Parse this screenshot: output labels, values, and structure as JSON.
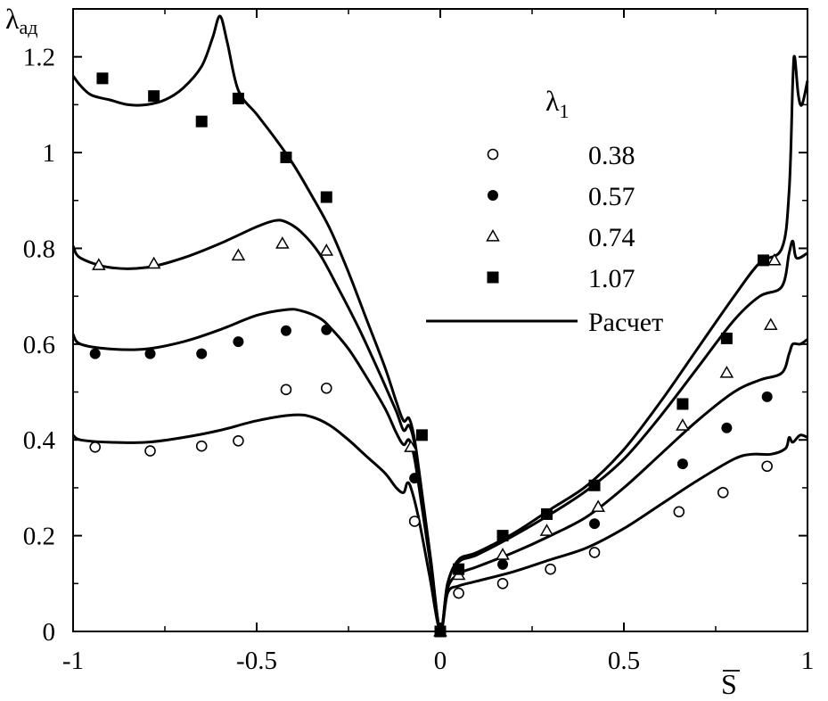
{
  "chart_data": {
    "type": "scatter",
    "xlim": [
      -1,
      1
    ],
    "ylim": [
      0,
      1.3
    ],
    "xlabel": "S",
    "ylabel_main": "λ",
    "ylabel_sub": "ад",
    "xticks": [
      -1,
      -0.5,
      0,
      0.5,
      1
    ],
    "xtick_labels": [
      "-1",
      "-0.5",
      "0",
      "0.5",
      "1"
    ],
    "yticks": [
      0,
      0.2,
      0.4,
      0.6,
      0.8,
      1,
      1.2
    ],
    "ytick_labels": [
      "0",
      "0.2",
      "0.4",
      "0.6",
      "0.8",
      "1",
      "1.2"
    ],
    "grid": false,
    "legend_position": "top-right",
    "legend_title_main": "λ",
    "legend_title_sub": "1",
    "series": [
      {
        "name": "0.38",
        "marker": "open-circle",
        "points": [
          [
            -0.94,
            0.385
          ],
          [
            -0.79,
            0.377
          ],
          [
            -0.65,
            0.387
          ],
          [
            -0.55,
            0.398
          ],
          [
            -0.42,
            0.505
          ],
          [
            -0.31,
            0.508
          ],
          [
            -0.07,
            0.23
          ],
          [
            0.0,
            0.0
          ],
          [
            0.05,
            0.08
          ],
          [
            0.17,
            0.1
          ],
          [
            0.3,
            0.13
          ],
          [
            0.42,
            0.165
          ],
          [
            0.65,
            0.25
          ],
          [
            0.77,
            0.29
          ],
          [
            0.89,
            0.345
          ]
        ]
      },
      {
        "name": "0.57",
        "marker": "filled-circle",
        "points": [
          [
            -0.94,
            0.58
          ],
          [
            -0.79,
            0.58
          ],
          [
            -0.65,
            0.58
          ],
          [
            -0.55,
            0.605
          ],
          [
            -0.42,
            0.628
          ],
          [
            -0.31,
            0.63
          ],
          [
            -0.07,
            0.32
          ],
          [
            0.0,
            0.0
          ],
          [
            0.05,
            0.125
          ],
          [
            0.17,
            0.14
          ],
          [
            0.42,
            0.225
          ],
          [
            0.66,
            0.35
          ],
          [
            0.78,
            0.425
          ],
          [
            0.89,
            0.49
          ]
        ]
      },
      {
        "name": "0.74",
        "marker": "open-triangle",
        "points": [
          [
            -0.93,
            0.765
          ],
          [
            -0.78,
            0.768
          ],
          [
            -0.55,
            0.785
          ],
          [
            -0.43,
            0.81
          ],
          [
            -0.31,
            0.795
          ],
          [
            -0.08,
            0.385
          ],
          [
            0.0,
            0.0
          ],
          [
            0.05,
            0.118
          ],
          [
            0.17,
            0.16
          ],
          [
            0.29,
            0.21
          ],
          [
            0.43,
            0.26
          ],
          [
            0.66,
            0.43
          ],
          [
            0.78,
            0.54
          ],
          [
            0.9,
            0.64
          ],
          [
            0.91,
            0.775
          ]
        ]
      },
      {
        "name": "1.07",
        "marker": "filled-square",
        "points": [
          [
            -0.92,
            1.155
          ],
          [
            -0.78,
            1.118
          ],
          [
            -0.65,
            1.065
          ],
          [
            -0.55,
            1.113
          ],
          [
            -0.42,
            0.99
          ],
          [
            -0.31,
            0.907
          ],
          [
            -0.05,
            0.41
          ],
          [
            0.0,
            0.0
          ],
          [
            0.05,
            0.13
          ],
          [
            0.17,
            0.2
          ],
          [
            0.29,
            0.245
          ],
          [
            0.42,
            0.305
          ],
          [
            0.66,
            0.475
          ],
          [
            0.78,
            0.612
          ],
          [
            0.88,
            0.775
          ]
        ]
      }
    ],
    "calculation": {
      "name": "Расчет",
      "curves": [
        [
          [
            -1,
            0.41
          ],
          [
            -0.98,
            0.4
          ],
          [
            -0.9,
            0.395
          ],
          [
            -0.8,
            0.395
          ],
          [
            -0.7,
            0.405
          ],
          [
            -0.6,
            0.42
          ],
          [
            -0.5,
            0.44
          ],
          [
            -0.4,
            0.452
          ],
          [
            -0.35,
            0.448
          ],
          [
            -0.3,
            0.43
          ],
          [
            -0.25,
            0.4
          ],
          [
            -0.2,
            0.365
          ],
          [
            -0.15,
            0.33
          ],
          [
            -0.12,
            0.3
          ],
          [
            -0.1,
            0.29
          ],
          [
            -0.09,
            0.31
          ],
          [
            -0.08,
            0.3
          ],
          [
            -0.06,
            0.24
          ],
          [
            -0.03,
            0.12
          ],
          [
            0,
            0
          ],
          [
            0.02,
            0.08
          ],
          [
            0.05,
            0.095
          ],
          [
            0.1,
            0.105
          ],
          [
            0.2,
            0.125
          ],
          [
            0.3,
            0.15
          ],
          [
            0.4,
            0.175
          ],
          [
            0.5,
            0.215
          ],
          [
            0.6,
            0.265
          ],
          [
            0.7,
            0.315
          ],
          [
            0.8,
            0.36
          ],
          [
            0.85,
            0.37
          ],
          [
            0.9,
            0.37
          ],
          [
            0.94,
            0.382
          ],
          [
            0.95,
            0.405
          ],
          [
            0.96,
            0.395
          ],
          [
            0.98,
            0.41
          ],
          [
            1,
            0.405
          ]
        ],
        [
          [
            -1,
            0.62
          ],
          [
            -0.98,
            0.6
          ],
          [
            -0.9,
            0.59
          ],
          [
            -0.8,
            0.59
          ],
          [
            -0.7,
            0.605
          ],
          [
            -0.6,
            0.63
          ],
          [
            -0.5,
            0.66
          ],
          [
            -0.42,
            0.672
          ],
          [
            -0.38,
            0.67
          ],
          [
            -0.33,
            0.655
          ],
          [
            -0.3,
            0.635
          ],
          [
            -0.25,
            0.59
          ],
          [
            -0.2,
            0.53
          ],
          [
            -0.15,
            0.465
          ],
          [
            -0.12,
            0.415
          ],
          [
            -0.1,
            0.39
          ],
          [
            -0.085,
            0.4
          ],
          [
            -0.07,
            0.36
          ],
          [
            -0.05,
            0.26
          ],
          [
            -0.025,
            0.13
          ],
          [
            0,
            0
          ],
          [
            0.02,
            0.09
          ],
          [
            0.05,
            0.12
          ],
          [
            0.1,
            0.135
          ],
          [
            0.2,
            0.165
          ],
          [
            0.3,
            0.2
          ],
          [
            0.4,
            0.24
          ],
          [
            0.5,
            0.3
          ],
          [
            0.6,
            0.37
          ],
          [
            0.7,
            0.44
          ],
          [
            0.8,
            0.5
          ],
          [
            0.87,
            0.525
          ],
          [
            0.93,
            0.54
          ],
          [
            0.95,
            0.58
          ],
          [
            0.96,
            0.6
          ],
          [
            0.98,
            0.6
          ],
          [
            1,
            0.61
          ]
        ],
        [
          [
            -1,
            0.805
          ],
          [
            -0.98,
            0.78
          ],
          [
            -0.9,
            0.76
          ],
          [
            -0.8,
            0.76
          ],
          [
            -0.7,
            0.78
          ],
          [
            -0.6,
            0.81
          ],
          [
            -0.5,
            0.845
          ],
          [
            -0.45,
            0.858
          ],
          [
            -0.42,
            0.855
          ],
          [
            -0.38,
            0.835
          ],
          [
            -0.33,
            0.79
          ],
          [
            -0.28,
            0.72
          ],
          [
            -0.22,
            0.63
          ],
          [
            -0.16,
            0.53
          ],
          [
            -0.12,
            0.46
          ],
          [
            -0.1,
            0.42
          ],
          [
            -0.085,
            0.43
          ],
          [
            -0.07,
            0.39
          ],
          [
            -0.05,
            0.28
          ],
          [
            -0.025,
            0.14
          ],
          [
            0,
            0
          ],
          [
            0.02,
            0.1
          ],
          [
            0.05,
            0.145
          ],
          [
            0.1,
            0.16
          ],
          [
            0.2,
            0.2
          ],
          [
            0.3,
            0.245
          ],
          [
            0.4,
            0.295
          ],
          [
            0.5,
            0.36
          ],
          [
            0.6,
            0.45
          ],
          [
            0.7,
            0.55
          ],
          [
            0.8,
            0.65
          ],
          [
            0.87,
            0.7
          ],
          [
            0.93,
            0.72
          ],
          [
            0.95,
            0.79
          ],
          [
            0.96,
            0.815
          ],
          [
            0.97,
            0.78
          ],
          [
            1,
            0.79
          ]
        ],
        [
          [
            -1,
            1.16
          ],
          [
            -0.98,
            1.14
          ],
          [
            -0.95,
            1.12
          ],
          [
            -0.9,
            1.11
          ],
          [
            -0.85,
            1.1
          ],
          [
            -0.8,
            1.1
          ],
          [
            -0.75,
            1.11
          ],
          [
            -0.7,
            1.135
          ],
          [
            -0.65,
            1.18
          ],
          [
            -0.62,
            1.24
          ],
          [
            -0.6,
            1.285
          ],
          [
            -0.58,
            1.23
          ],
          [
            -0.55,
            1.13
          ],
          [
            -0.5,
            1.08
          ],
          [
            -0.45,
            1.03
          ],
          [
            -0.4,
            0.975
          ],
          [
            -0.35,
            0.91
          ],
          [
            -0.3,
            0.84
          ],
          [
            -0.25,
            0.75
          ],
          [
            -0.2,
            0.65
          ],
          [
            -0.15,
            0.55
          ],
          [
            -0.12,
            0.48
          ],
          [
            -0.1,
            0.44
          ],
          [
            -0.085,
            0.445
          ],
          [
            -0.07,
            0.4
          ],
          [
            -0.05,
            0.29
          ],
          [
            -0.025,
            0.145
          ],
          [
            0,
            0
          ],
          [
            0.02,
            0.1
          ],
          [
            0.05,
            0.15
          ],
          [
            0.1,
            0.165
          ],
          [
            0.2,
            0.205
          ],
          [
            0.3,
            0.255
          ],
          [
            0.4,
            0.305
          ],
          [
            0.5,
            0.38
          ],
          [
            0.6,
            0.48
          ],
          [
            0.7,
            0.59
          ],
          [
            0.8,
            0.7
          ],
          [
            0.87,
            0.77
          ],
          [
            0.93,
            0.8
          ],
          [
            0.95,
            0.92
          ],
          [
            0.96,
            1.15
          ],
          [
            0.965,
            1.2
          ],
          [
            0.975,
            1.12
          ],
          [
            0.985,
            1.1
          ],
          [
            1,
            1.15
          ]
        ]
      ]
    }
  }
}
